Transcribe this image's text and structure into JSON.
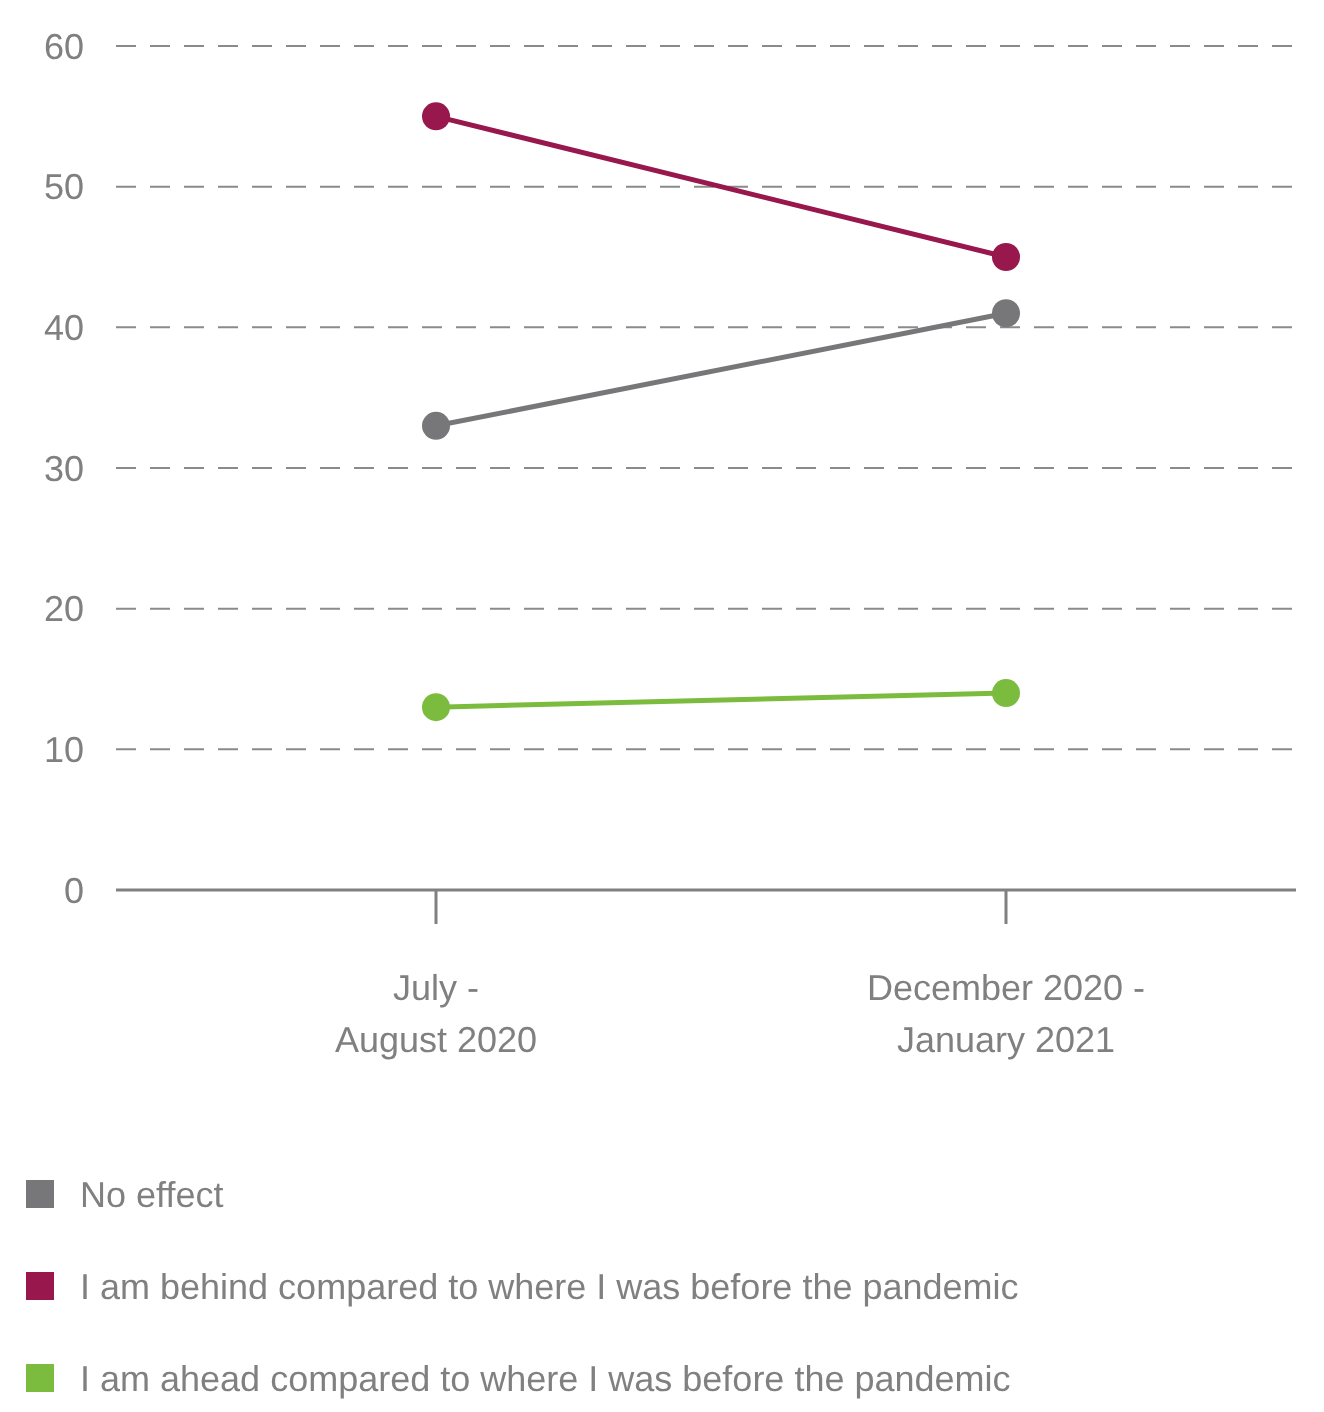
{
  "chart_data": {
    "type": "line",
    "categories": [
      "July - August 2020",
      "December 2020 - January 2021"
    ],
    "series": [
      {
        "name": "No effect",
        "color": "#77777a",
        "values": [
          33,
          41
        ]
      },
      {
        "name": "I am behind compared to where I was before the pandemic",
        "color": "#98174c",
        "values": [
          55,
          45
        ]
      },
      {
        "name": "I am ahead compared to where I was before the pandemic",
        "color": "#7bbc3e",
        "values": [
          13,
          14
        ]
      }
    ],
    "ylim": [
      0,
      60
    ],
    "yticks": [
      0,
      10,
      20,
      30,
      40,
      50,
      60
    ],
    "grid": "y",
    "legend": "bottom",
    "marker": "circle",
    "line_style": "solid"
  }
}
